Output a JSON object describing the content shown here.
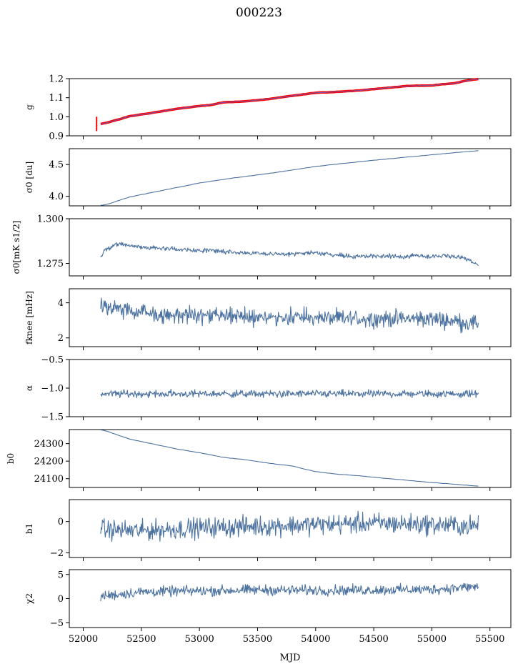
{
  "figure": {
    "title": "000223"
  },
  "chart_data": [
    {
      "type": "line",
      "ylabel": "g",
      "ylim": [
        0.9,
        1.2
      ],
      "yticks": [
        0.9,
        1.0,
        1.1,
        1.2
      ],
      "series": [
        {
          "color": "#ff0000",
          "values": [
            [
              52150,
              0.962
            ],
            [
              52200,
              0.968
            ],
            [
              52300,
              0.985
            ],
            [
              52400,
              1.003
            ],
            [
              52600,
              1.021
            ],
            [
              52800,
              1.041
            ],
            [
              53000,
              1.056
            ],
            [
              53100,
              1.062
            ],
            [
              53200,
              1.075
            ],
            [
              53400,
              1.081
            ],
            [
              53600,
              1.093
            ],
            [
              53800,
              1.11
            ],
            [
              54000,
              1.126
            ],
            [
              54200,
              1.131
            ],
            [
              54400,
              1.139
            ],
            [
              54600,
              1.151
            ],
            [
              54800,
              1.162
            ],
            [
              55000,
              1.164
            ],
            [
              55100,
              1.171
            ],
            [
              55200,
              1.176
            ],
            [
              55300,
              1.19
            ],
            [
              55400,
              1.198
            ]
          ]
        },
        {
          "color": "#7a52a8",
          "values": [
            [
              52150,
              0.962
            ],
            [
              52200,
              0.968
            ],
            [
              52300,
              0.985
            ],
            [
              52400,
              1.003
            ],
            [
              52600,
              1.021
            ],
            [
              52800,
              1.041
            ],
            [
              53000,
              1.056
            ],
            [
              53100,
              1.062
            ],
            [
              53200,
              1.075
            ],
            [
              53400,
              1.081
            ],
            [
              53600,
              1.093
            ],
            [
              53800,
              1.11
            ],
            [
              54000,
              1.126
            ],
            [
              54200,
              1.131
            ],
            [
              54400,
              1.139
            ],
            [
              54600,
              1.151
            ],
            [
              54800,
              1.162
            ],
            [
              55000,
              1.164
            ],
            [
              55100,
              1.171
            ],
            [
              55200,
              1.176
            ],
            [
              55300,
              1.19
            ],
            [
              55400,
              1.198
            ]
          ]
        }
      ]
    },
    {
      "type": "line",
      "ylabel": "σ0 [du]",
      "ylim": [
        3.85,
        4.75
      ],
      "yticks": [
        4.0,
        4.5
      ],
      "series": [
        {
          "color": "#4c72a0",
          "values": [
            [
              52150,
              3.86
            ],
            [
              52200,
              3.87
            ],
            [
              52400,
              3.99
            ],
            [
              52700,
              4.1
            ],
            [
              53000,
              4.21
            ],
            [
              53300,
              4.29
            ],
            [
              53600,
              4.36
            ],
            [
              54000,
              4.47
            ],
            [
              54400,
              4.55
            ],
            [
              54800,
              4.62
            ],
            [
              55100,
              4.67
            ],
            [
              55400,
              4.72
            ]
          ]
        }
      ]
    },
    {
      "type": "line",
      "ylabel": "σ0[mK s1/2]",
      "ylim": [
        1.268,
        1.3
      ],
      "yticks": [
        1.275,
        1.3
      ],
      "series": [
        {
          "color": "#4c72a0",
          "values": [
            [
              52150,
              1.279
            ],
            [
              52200,
              1.283
            ],
            [
              52300,
              1.286
            ],
            [
              52500,
              1.284
            ],
            [
              52800,
              1.283
            ],
            [
              53100,
              1.282
            ],
            [
              53400,
              1.281
            ],
            [
              53700,
              1.28
            ],
            [
              54000,
              1.281
            ],
            [
              54300,
              1.279
            ],
            [
              54600,
              1.279
            ],
            [
              54900,
              1.279
            ],
            [
              55200,
              1.279
            ],
            [
              55300,
              1.277
            ],
            [
              55400,
              1.274
            ]
          ]
        }
      ],
      "noise": 0.0009
    },
    {
      "type": "line",
      "ylabel": "fknee [mHz]",
      "ylim": [
        1.5,
        4.8
      ],
      "yticks": [
        2,
        4
      ],
      "series": [
        {
          "color": "#4c72a0",
          "values": [
            [
              52150,
              3.9
            ],
            [
              52400,
              3.5
            ],
            [
              52700,
              3.3
            ],
            [
              53000,
              3.3
            ],
            [
              53400,
              3.2
            ],
            [
              53800,
              3.2
            ],
            [
              54200,
              3.1
            ],
            [
              54600,
              3.1
            ],
            [
              55000,
              3.1
            ],
            [
              55400,
              2.8
            ]
          ]
        }
      ],
      "noise": 0.33
    },
    {
      "type": "line",
      "ylabel": "α",
      "ylim": [
        -1.5,
        -0.5
      ],
      "yticks": [
        -1.5,
        -1.0,
        -0.5
      ],
      "series": [
        {
          "color": "#4c72a0",
          "values": [
            [
              52150,
              -1.1
            ],
            [
              55400,
              -1.1
            ]
          ]
        }
      ],
      "noise": 0.045
    },
    {
      "type": "line",
      "ylabel": "b0",
      "ylim": [
        24050,
        24380
      ],
      "yticks": [
        24100,
        24200,
        24300
      ],
      "series": [
        {
          "color": "#4c72a0",
          "values": [
            [
              52150,
              24378
            ],
            [
              52200,
              24372
            ],
            [
              52400,
              24325
            ],
            [
              52600,
              24298
            ],
            [
              52800,
              24270
            ],
            [
              53000,
              24248
            ],
            [
              53200,
              24222
            ],
            [
              53400,
              24208
            ],
            [
              53600,
              24188
            ],
            [
              53800,
              24172
            ],
            [
              54000,
              24140
            ],
            [
              54200,
              24125
            ],
            [
              54400,
              24115
            ],
            [
              54600,
              24102
            ],
            [
              54800,
              24090
            ],
            [
              55000,
              24078
            ],
            [
              55200,
              24068
            ],
            [
              55400,
              24058
            ]
          ]
        }
      ]
    },
    {
      "type": "line",
      "ylabel": "b1",
      "ylim": [
        -2.3,
        1.4
      ],
      "yticks": [
        -2,
        0
      ],
      "series": [
        {
          "color": "#4c72a0",
          "values": [
            [
              52150,
              -0.5
            ],
            [
              52500,
              -0.6
            ],
            [
              53000,
              -0.4
            ],
            [
              53500,
              -0.3
            ],
            [
              54000,
              -0.2
            ],
            [
              54500,
              -0.1
            ],
            [
              55000,
              -0.2
            ],
            [
              55400,
              -0.3
            ]
          ]
        }
      ],
      "noise": 0.45
    },
    {
      "type": "line",
      "ylabel": "χ2",
      "ylim": [
        -6,
        6
      ],
      "yticks": [
        -5,
        0,
        5
      ],
      "series": [
        {
          "color": "#4c72a0",
          "values": [
            [
              52150,
              0.5
            ],
            [
              52500,
              1.4
            ],
            [
              53000,
              1.6
            ],
            [
              53500,
              1.8
            ],
            [
              54000,
              1.7
            ],
            [
              54500,
              1.8
            ],
            [
              55000,
              1.9
            ],
            [
              55400,
              2.5
            ]
          ]
        }
      ],
      "noise": 0.75
    }
  ],
  "xaxis": {
    "label": "MJD",
    "xlim": [
      51880,
      55680
    ],
    "ticks": [
      52000,
      52500,
      53000,
      53500,
      54000,
      54500,
      55000,
      55500
    ]
  }
}
